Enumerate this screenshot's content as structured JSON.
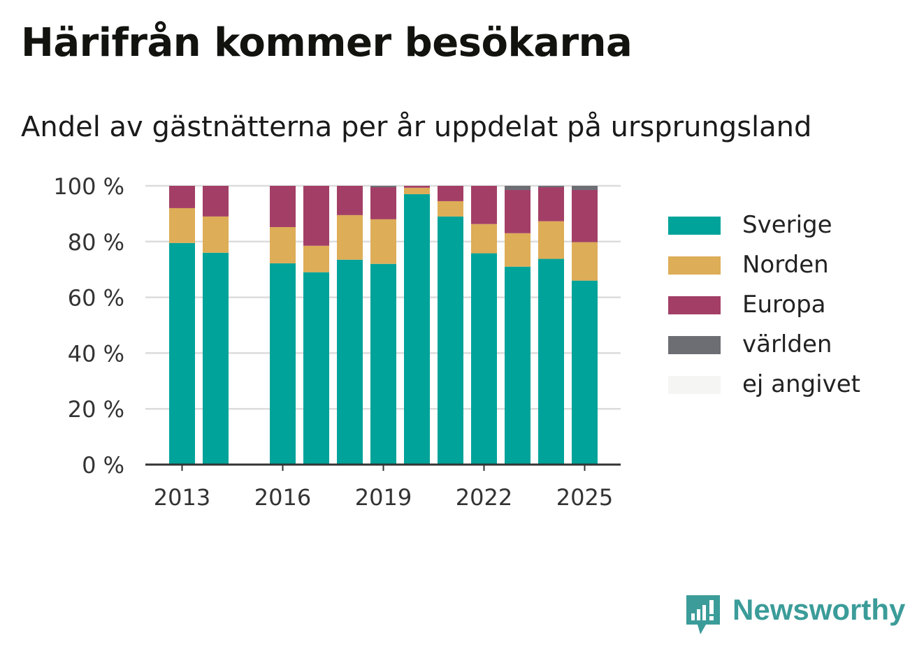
{
  "title": "Härifrån kommer besökarna",
  "subtitle": "Andel av gästnätterna per år uppdelat på ursprungsland",
  "brand": {
    "name": "Newsworthy",
    "icon": "newsworthy-logo-icon",
    "color": "#3b9c99"
  },
  "chart_data": {
    "type": "bar",
    "stacked": true,
    "x": [
      2013,
      2014,
      2015,
      2016,
      2017,
      2018,
      2019,
      2020,
      2021,
      2022,
      2023,
      2024,
      2025
    ],
    "x_tick_labels": [
      "2013",
      "2016",
      "2019",
      "2022",
      "2025"
    ],
    "x_tick_values": [
      2013,
      2016,
      2019,
      2022,
      2025
    ],
    "y_tick_labels": [
      "0 %",
      "20 %",
      "40 %",
      "60 %",
      "80 %",
      "100 %"
    ],
    "y_tick_values": [
      0,
      20,
      40,
      60,
      80,
      100
    ],
    "ylim": [
      0,
      100
    ],
    "y_unit": "%",
    "grid": true,
    "legend_position": "right",
    "series": [
      {
        "name": "Sverige",
        "color": "#00a39a",
        "values": [
          79.5,
          76,
          null,
          72.2,
          69,
          73.5,
          72,
          97,
          89,
          75.8,
          71,
          73.8,
          66
        ]
      },
      {
        "name": "Norden",
        "color": "#ddad57",
        "values": [
          12.5,
          13,
          null,
          13,
          9.5,
          16,
          16,
          2.3,
          5.5,
          10.5,
          12,
          13.5,
          13.8
        ]
      },
      {
        "name": "Europa",
        "color": "#a33f66",
        "values": [
          8,
          11,
          null,
          14.8,
          21.5,
          10.5,
          11.5,
          0.7,
          5.5,
          13.7,
          15.5,
          12.2,
          18.7
        ]
      },
      {
        "name": "världen",
        "color": "#6d6d74",
        "values": [
          0,
          0,
          null,
          0,
          0,
          0,
          0.5,
          0,
          0,
          0,
          1.5,
          0.5,
          1.5
        ]
      },
      {
        "name": "ej angivet",
        "color": "#f5f5f3",
        "values": [
          0,
          0,
          null,
          0,
          0,
          0,
          0,
          0,
          0,
          0,
          0,
          0,
          0
        ]
      }
    ]
  }
}
